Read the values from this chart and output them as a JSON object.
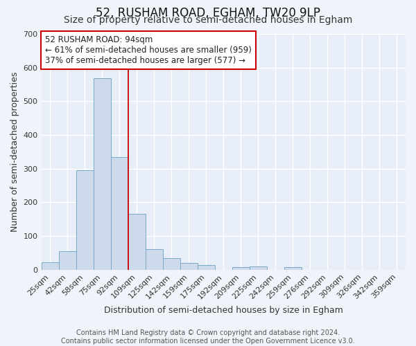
{
  "title": "52, RUSHAM ROAD, EGHAM, TW20 9LP",
  "subtitle": "Size of property relative to semi-detached houses in Egham",
  "xlabel": "Distribution of semi-detached houses by size in Egham",
  "ylabel": "Number of semi-detached properties",
  "categories": [
    "25sqm",
    "42sqm",
    "58sqm",
    "75sqm",
    "92sqm",
    "109sqm",
    "125sqm",
    "142sqm",
    "159sqm",
    "175sqm",
    "192sqm",
    "209sqm",
    "225sqm",
    "242sqm",
    "259sqm",
    "276sqm",
    "292sqm",
    "309sqm",
    "326sqm",
    "342sqm",
    "359sqm"
  ],
  "values": [
    22,
    55,
    295,
    568,
    335,
    165,
    62,
    35,
    20,
    15,
    0,
    7,
    10,
    0,
    8,
    0,
    0,
    0,
    0,
    0,
    0
  ],
  "bar_color": "#ccdaeb",
  "bar_edge_color": "#7aaac8",
  "background_color": "#f0f4fa",
  "plot_bg_color": "#e8eef7",
  "grid_color": "#ffffff",
  "vline_color": "#cc0000",
  "vline_x_index": 4,
  "annotation_title": "52 RUSHAM ROAD: 94sqm",
  "annotation_line1": "← 61% of semi-detached houses are smaller (959)",
  "annotation_line2": "37% of semi-detached houses are larger (577) →",
  "annotation_box_color": "#ffffff",
  "annotation_border_color": "#cc0000",
  "ylim": [
    0,
    700
  ],
  "yticks": [
    0,
    100,
    200,
    300,
    400,
    500,
    600,
    700
  ],
  "footer1": "Contains HM Land Registry data © Crown copyright and database right 2024.",
  "footer2": "Contains public sector information licensed under the Open Government Licence v3.0.",
  "title_fontsize": 12,
  "subtitle_fontsize": 10,
  "axis_label_fontsize": 9,
  "tick_fontsize": 8,
  "annotation_fontsize": 8.5,
  "footer_fontsize": 7
}
